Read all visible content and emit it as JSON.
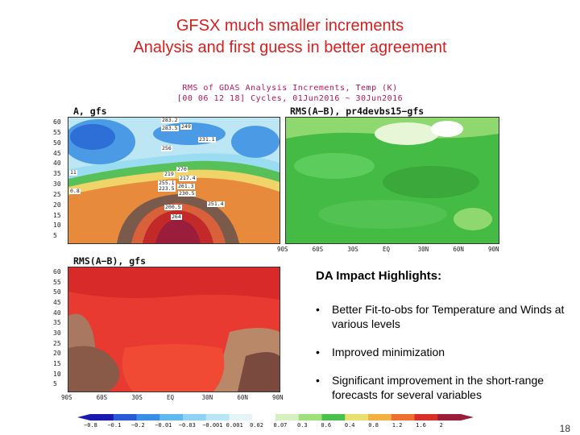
{
  "slide": {
    "title_line1": "GFSX much smaller increments",
    "title_line2": "Analysis and first guess in better agreement",
    "page_number": "18"
  },
  "figure": {
    "header_line1": "RMS of GDAS Analysis Increments, Temp (K)",
    "header_line2": "[00 06 12 18] Cycles, 01Jun2016 ~ 30Jun2016",
    "panel_a_title": "A, gfs",
    "panel_b_title": "RMS(A−B), pr4devbs15−gfs",
    "panel_c_title": "RMS(A−B), gfs",
    "y_ticks": [
      "60",
      "55",
      "50",
      "45",
      "40",
      "35",
      "30",
      "25",
      "20",
      "15",
      "10",
      "5"
    ],
    "x_ticks": [
      "90S",
      "60S",
      "30S",
      "EQ",
      "30N",
      "60N",
      "90N"
    ],
    "panel_a_contour_labels": [
      "283.2",
      "249",
      "283.5",
      "231.1",
      "256",
      "270",
      "219",
      "217.4",
      "255.1",
      "261.3",
      "223.5",
      "230.5",
      "251.4",
      "200.5",
      "264",
      "11",
      "0.8"
    ],
    "colorbar_labels": [
      "−0.8",
      "−0.1",
      "−0.2",
      "−0.01",
      "−0.03",
      "−0.001",
      "0.001",
      "0.02",
      "0.07",
      "0.3",
      "0.6",
      "0.4",
      "0.8",
      "1.2",
      "1.6",
      "2"
    ],
    "colorbar_colors": [
      "#1a1ab0",
      "#2a5ad8",
      "#3a8ee8",
      "#5fb8f0",
      "#8fd3f4",
      "#b9e6f6",
      "#e6f4f8",
      "#ffffff",
      "#d6f0c0",
      "#9ee07a",
      "#4cc04c",
      "#eae070",
      "#f4b040",
      "#ee7030",
      "#d83028",
      "#9a1e3c"
    ]
  },
  "highlights": {
    "title": "DA Impact Highlights:",
    "bullets": [
      "Better Fit-to-obs for Temperature and Winds at various levels",
      "Improved minimization",
      "Significant improvement in the short-range forecasts for several variables"
    ]
  }
}
